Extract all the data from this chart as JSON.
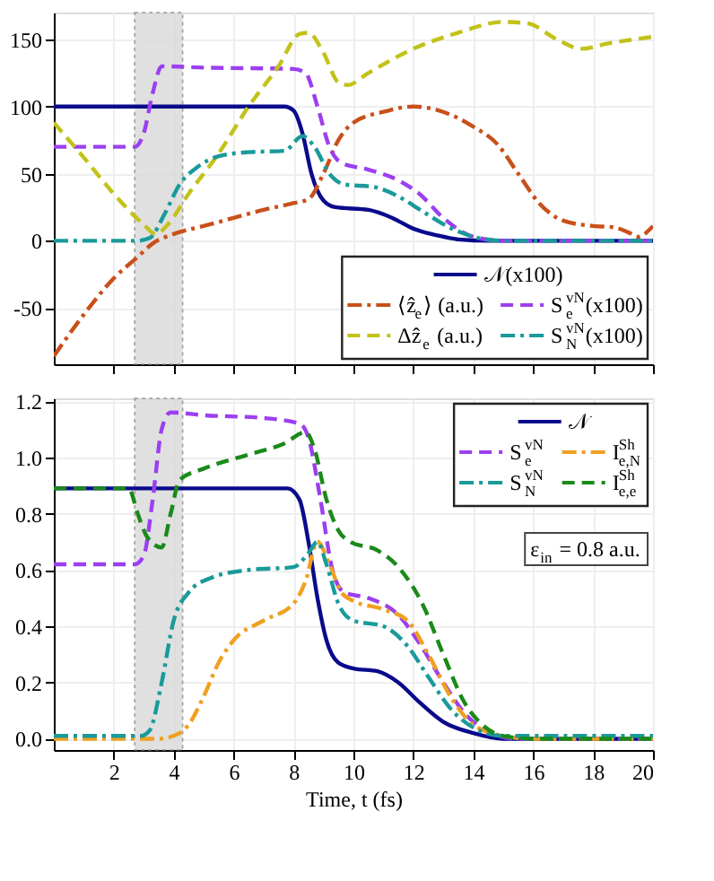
{
  "chart_data": [
    {
      "type": "line",
      "xlim": [
        0,
        20
      ],
      "ylim": [
        -92,
        170
      ],
      "xticks": [
        2,
        4,
        6,
        8,
        10,
        12,
        14,
        16,
        18,
        20
      ],
      "yticks": [
        -50,
        0,
        50,
        100,
        150
      ],
      "tick_labels": "y",
      "grid": true,
      "legend": "bottom right",
      "marker": "none",
      "bands": [
        {
          "axis": "x",
          "from": 2.7,
          "to": 4.3,
          "color": "#d9d9d9"
        }
      ],
      "series": [
        {
          "name": "𝒩(x100)",
          "color": "#0a0a8c",
          "line_style": "solid",
          "x": [
            0,
            7.7,
            8.0,
            8.3,
            8.6,
            9.0,
            9.4,
            10.5,
            11.3,
            12,
            12.8,
            13.5,
            14.5,
            20
          ],
          "values": [
            100,
            100,
            97,
            80,
            50,
            30,
            25,
            23,
            17,
            9,
            4,
            1,
            0,
            0
          ]
        },
        {
          "name": "⟨ẑ$_{e}$⟩ (a.u.)",
          "color": "#c8501a",
          "line_style": "dashdot",
          "x": [
            0,
            1,
            2,
            2.8,
            3.3,
            4,
            5,
            6,
            7,
            8,
            8.5,
            9,
            9.5,
            10,
            11,
            12,
            13,
            14,
            14.8,
            15.5,
            16.2,
            17,
            18,
            18.7,
            19.2,
            19.5,
            20
          ],
          "values": [
            -86,
            -55,
            -28,
            -12,
            -2,
            5,
            11,
            17,
            23,
            28,
            31,
            50,
            75,
            88,
            96,
            100,
            96,
            85,
            72,
            50,
            28,
            15,
            11,
            10,
            6,
            3,
            11
          ]
        },
        {
          "name": "S$_{e}$$^{vN}$(x100)",
          "color": "#9b3ff0",
          "line_style": "dashed",
          "x": [
            0,
            2.7,
            3.0,
            3.3,
            3.6,
            5,
            8,
            8.4,
            8.8,
            9.2,
            9.6,
            10.5,
            11.5,
            12.2,
            13,
            14,
            15,
            20
          ],
          "values": [
            70,
            70,
            80,
            110,
            130,
            129,
            128,
            125,
            100,
            70,
            58,
            53,
            45,
            35,
            17,
            3,
            0,
            0
          ]
        },
        {
          "name": "Δẑ$_{e}$ (a.u.)",
          "color": "#c2c21a",
          "line_style": "dashed",
          "x": [
            0,
            1,
            2,
            3,
            3.4,
            3.8,
            4.5,
            5.5,
            6.5,
            7.5,
            8.2,
            8.5,
            9,
            9.5,
            9.8,
            10.5,
            12,
            13.5,
            15,
            15.8,
            16.8,
            17.6,
            18.5,
            20
          ],
          "values": [
            88,
            62,
            35,
            12,
            5,
            12,
            35,
            65,
            100,
            130,
            154,
            155,
            140,
            118,
            116,
            125,
            143,
            155,
            163,
            162,
            150,
            143,
            147,
            152
          ]
        },
        {
          "name": "S$_{N}$$^{vN}$(x100)",
          "color": "#1a9a9a",
          "line_style": "dashdot",
          "x": [
            0,
            2.8,
            3.2,
            3.7,
            4.2,
            4.8,
            5.5,
            6.5,
            7.7,
            8.3,
            8.7,
            9.2,
            9.7,
            10.7,
            11.5,
            12.3,
            13.2,
            14,
            15,
            20
          ],
          "values": [
            0,
            0,
            2,
            20,
            42,
            55,
            63,
            66,
            67,
            78,
            70,
            50,
            42,
            40,
            33,
            22,
            10,
            3,
            0,
            0
          ]
        }
      ]
    },
    {
      "type": "line",
      "xlabel": "Time, t (fs)",
      "xlim": [
        0,
        20
      ],
      "ylim": [
        -0.04,
        1.21
      ],
      "xticks": [
        2,
        4,
        6,
        8,
        10,
        12,
        14,
        16,
        18,
        20
      ],
      "yticks": [
        {
          "value": 0,
          "label": "0.0"
        },
        0.2,
        0.4,
        0.6,
        0.8,
        {
          "value": 1,
          "label": "1.0"
        },
        1.2
      ],
      "grid": true,
      "legend": "top right",
      "marker": "none",
      "annotations": [
        "ε$_{in}$ = 0.8 a.u."
      ],
      "bands": [
        {
          "axis": "x",
          "from": 2.7,
          "to": 4.3,
          "color": "#d9d9d9"
        }
      ],
      "series": [
        {
          "name": "𝒩",
          "color": "#0a0a8c",
          "line_style": "solid",
          "x": [
            0,
            7.8,
            8.2,
            8.5,
            8.8,
            9.1,
            9.5,
            10,
            10.8,
            11.5,
            12.2,
            13,
            14,
            15,
            20
          ],
          "values": [
            0.89,
            0.89,
            0.85,
            0.7,
            0.5,
            0.35,
            0.27,
            0.25,
            0.24,
            0.2,
            0.13,
            0.06,
            0.02,
            0,
            0
          ]
        },
        {
          "name": "S$_{e}$$^{vN}$",
          "color": "#9b3ff0",
          "line_style": "dashed",
          "x": [
            0,
            2.7,
            3.0,
            3.3,
            3.6,
            3.9,
            5,
            7,
            8.2,
            8.5,
            8.9,
            9.3,
            9.7,
            10.5,
            11.5,
            12.2,
            13,
            13.8,
            14.6,
            15.5,
            20
          ],
          "values": [
            0.62,
            0.62,
            0.65,
            0.85,
            1.1,
            1.16,
            1.15,
            1.14,
            1.12,
            1.07,
            0.85,
            0.6,
            0.52,
            0.5,
            0.44,
            0.34,
            0.2,
            0.08,
            0.02,
            0,
            0
          ]
        },
        {
          "name": "I$_{e,N}$$^{Sh}$",
          "color": "#f0a020",
          "line_style": "dashdot",
          "x": [
            0,
            3.5,
            4.2,
            4.5,
            5,
            5.5,
            6,
            7,
            8,
            8.4,
            8.8,
            9.2,
            9.6,
            10,
            11,
            11.8,
            12.5,
            13.3,
            14,
            15,
            16,
            20
          ],
          "values": [
            0,
            0,
            0.02,
            0.05,
            0.15,
            0.27,
            0.35,
            0.42,
            0.48,
            0.56,
            0.7,
            0.62,
            0.52,
            0.49,
            0.46,
            0.42,
            0.3,
            0.14,
            0.05,
            0.01,
            0,
            0
          ]
        },
        {
          "name": "S$_{N}$$^{vN}$",
          "color": "#1a9a9a",
          "line_style": "dashdot",
          "x": [
            0,
            2.9,
            3.2,
            3.6,
            4.0,
            4.5,
            5.2,
            6.5,
            8,
            8.5,
            8.8,
            9.1,
            9.5,
            10,
            11,
            11.8,
            12.5,
            13.3,
            14,
            15,
            20
          ],
          "values": [
            0.01,
            0.01,
            0.03,
            0.2,
            0.42,
            0.52,
            0.57,
            0.6,
            0.61,
            0.66,
            0.7,
            0.62,
            0.48,
            0.42,
            0.4,
            0.33,
            0.22,
            0.1,
            0.04,
            0.01,
            0.01
          ]
        },
        {
          "name": "I$_{e,e}$$^{Sh}$",
          "color": "#1a8a1a",
          "line_style": "dashed",
          "x": [
            0,
            2.5,
            2.8,
            3.1,
            3.6,
            3.9,
            4.2,
            5,
            6.5,
            7.7,
            8.4,
            8.7,
            9.1,
            9.5,
            9.9,
            10.8,
            11.5,
            12.3,
            13,
            13.7,
            14.3,
            15,
            16,
            20
          ],
          "values": [
            0.89,
            0.89,
            0.8,
            0.72,
            0.68,
            0.8,
            0.92,
            0.96,
            1.01,
            1.05,
            1.09,
            1.03,
            0.85,
            0.74,
            0.7,
            0.67,
            0.61,
            0.48,
            0.3,
            0.13,
            0.05,
            0.01,
            0,
            0
          ]
        }
      ]
    }
  ]
}
